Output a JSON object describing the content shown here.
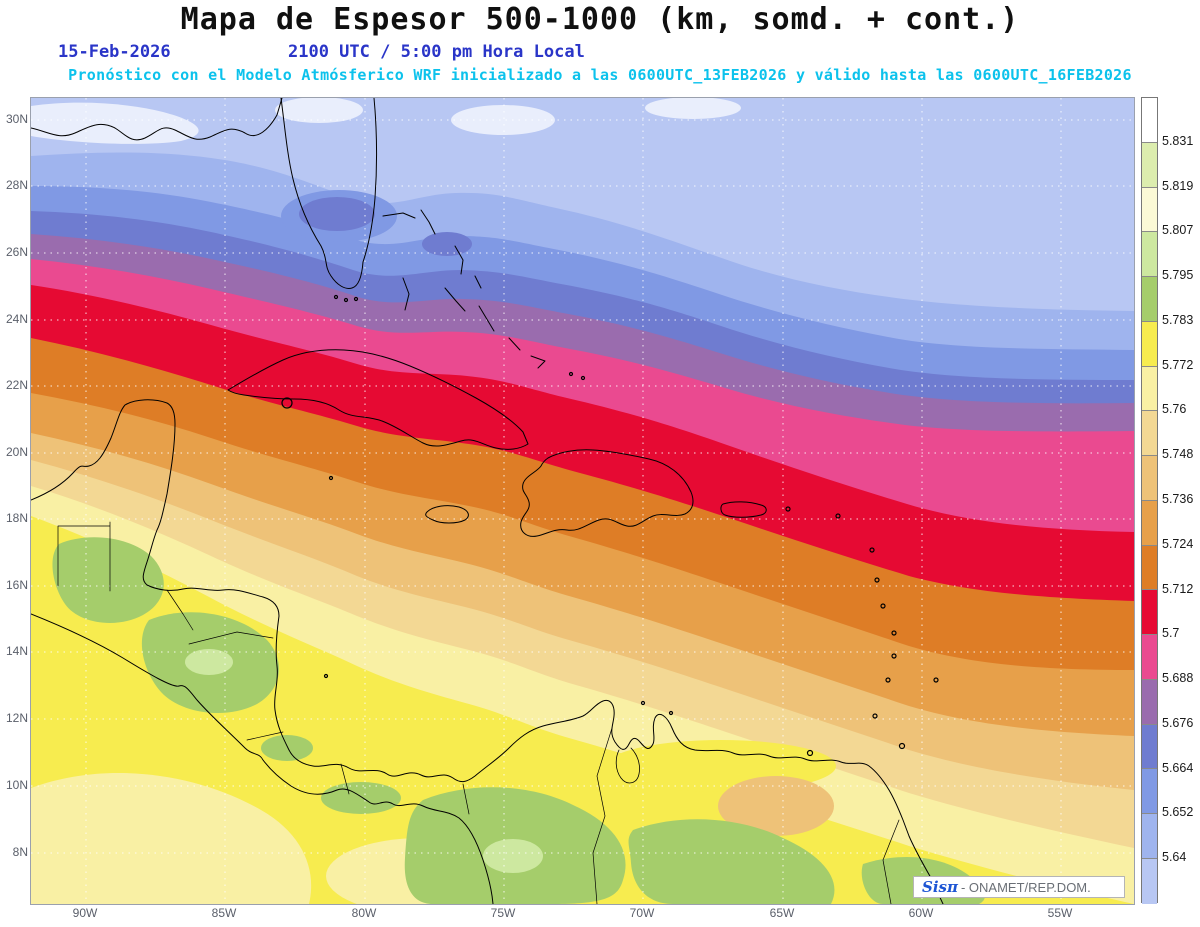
{
  "header": {
    "title": "Mapa de Espesor 500-1000 (km, somd. + cont.)",
    "date": "15-Feb-2026",
    "time": "2100 UTC / 5:00 pm Hora Local",
    "forecast": "Pronóstico con el Modelo Atmósferico WRF inicializado a las 0600UTC_13FEB2026 y válido hasta las  0600UTC_16FEB2026"
  },
  "axes": {
    "lat_labels": [
      "30N",
      "28N",
      "26N",
      "24N",
      "22N",
      "20N",
      "18N",
      "16N",
      "14N",
      "12N",
      "10N",
      "8N"
    ],
    "lon_labels": [
      "90W",
      "85W",
      "80W",
      "75W",
      "70W",
      "65W",
      "60W",
      "55W"
    ]
  },
  "colorbar": {
    "labels": [
      "5.831",
      "5.819",
      "5.807",
      "5.795",
      "5.783",
      "5.772",
      "5.76",
      "5.748",
      "5.736",
      "5.724",
      "5.712",
      "5.7",
      "5.688",
      "5.676",
      "5.664",
      "5.652",
      "5.64"
    ],
    "colors": [
      "#ffffff",
      "#dcedae",
      "#fbf9d6",
      "#cde8a0",
      "#a5cd6b",
      "#f7ec4f",
      "#f9f0a4",
      "#f3d894",
      "#eec278",
      "#e7a04a",
      "#de7d26",
      "#e60a33",
      "#ea4a90",
      "#9a6cae",
      "#6f7cd0",
      "#8099e4",
      "#9fb4ee",
      "#b8c7f3"
    ],
    "below_scale_color": "#e9eefc"
  },
  "watermark": {
    "brand": "Sisπ",
    "suffix": "- ONAMET/REP.DOM."
  },
  "grid_color": "#ffffff",
  "coast_color": "#000000"
}
